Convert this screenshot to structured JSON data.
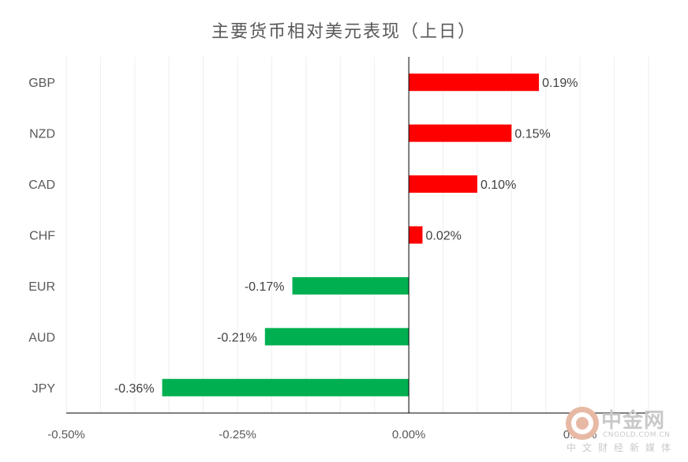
{
  "chart_data": {
    "type": "bar",
    "orientation": "horizontal",
    "title": "主要货币相对美元表现（上日）",
    "categories": [
      "GBP",
      "NZD",
      "CAD",
      "CHF",
      "EUR",
      "AUD",
      "JPY"
    ],
    "values": [
      0.19,
      0.15,
      0.1,
      0.02,
      -0.17,
      -0.21,
      -0.36
    ],
    "data_labels": [
      "0.19%",
      "0.15%",
      "0.10%",
      "0.02%",
      "-0.17%",
      "-0.21%",
      "-0.36%"
    ],
    "xlim": [
      -0.5,
      0.35
    ],
    "x_ticks": [
      -0.5,
      -0.25,
      0.0,
      0.25
    ],
    "x_tick_labels": [
      "-0.50%",
      "-0.25%",
      "0.00%",
      "0.25%"
    ],
    "xlabel": "",
    "ylabel": "",
    "grid": "vertical",
    "legend": "none",
    "colors": {
      "positive": "#ff0000",
      "negative": "#00b050",
      "axis": "#000000",
      "grid": "#eeeeee",
      "text": "#595959"
    }
  },
  "watermark": {
    "logo_text": "中金网",
    "domain": "CNGOLD.COM.CN",
    "tagline": "中文财经新媒体",
    "icon": "cngold-logo-icon"
  }
}
